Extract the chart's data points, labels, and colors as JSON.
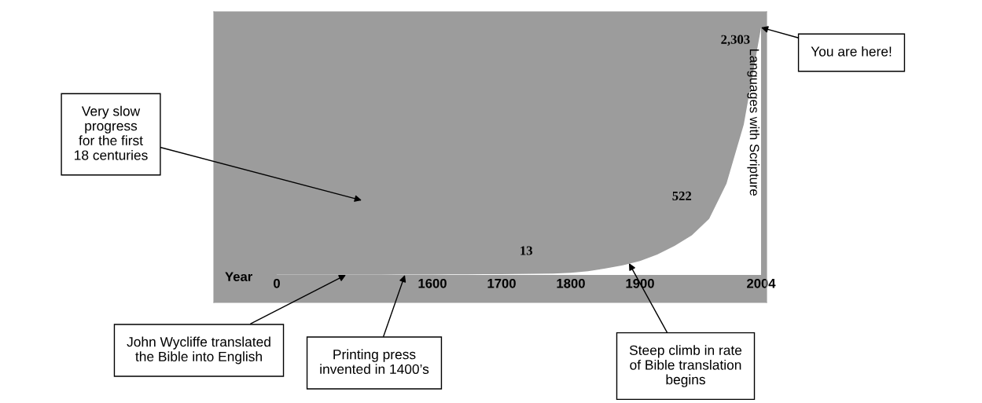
{
  "chart_data": {
    "type": "area",
    "xlabel": "Year",
    "ylabel": "Languages with Scripture",
    "categories": [
      "0",
      null,
      null,
      null,
      null,
      null,
      null,
      null,
      null,
      "1600",
      null,
      null,
      null,
      "1700",
      null,
      null,
      null,
      "1800",
      null,
      null,
      null,
      "1900",
      null,
      null,
      null,
      null,
      null,
      null,
      "2004"
    ],
    "series": [
      {
        "color": "#ffffff",
        "values": [
          1,
          1,
          1,
          1,
          2,
          2,
          2,
          3,
          3,
          4,
          5,
          6,
          7,
          8,
          10,
          11,
          13,
          20,
          35,
          60,
          90,
          130,
          190,
          270,
          370,
          522,
          850,
          1400,
          2303
        ],
        "value_labels": [
          null,
          null,
          null,
          null,
          null,
          null,
          null,
          null,
          null,
          null,
          null,
          null,
          null,
          null,
          null,
          null,
          "13",
          null,
          null,
          null,
          null,
          null,
          null,
          null,
          null,
          "522",
          null,
          null,
          "2,303"
        ]
      }
    ],
    "annotations": [
      "Very slow\nprogress\nfor the first\n18 centuries",
      {
        "text": "You are here!",
        "x": "2004",
        "y": 2303
      },
      "John Wycliffe translated\nthe Bible into English",
      "Printing press\ninvented in 1400’s",
      "Steep climb in rate\nof Bible translation\nbegins"
    ]
  }
}
